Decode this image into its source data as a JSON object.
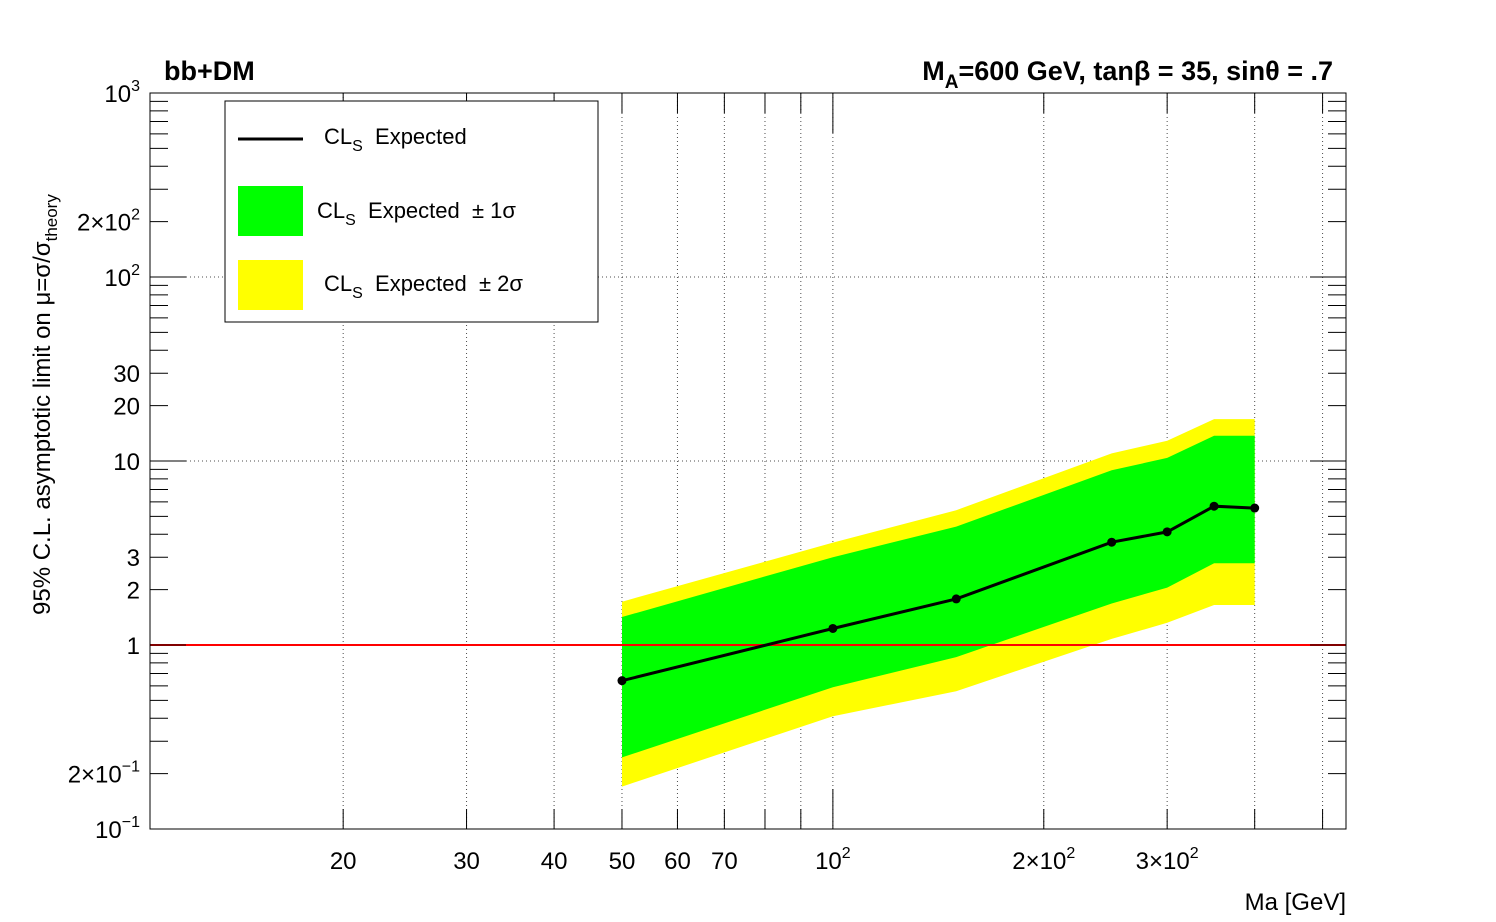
{
  "chart_data": {
    "type": "line",
    "title_left": "bb+DM",
    "title_right": {
      "part1": "M",
      "sub": "A",
      "part2": "=600 GeV, tanβ = 35, sinθ = .7"
    },
    "xlabel": "Ma [GeV]",
    "ylabel": {
      "main": "95% C.L. asymptotic limit on μ=σ/σ",
      "sub": "theory"
    },
    "x_scale": "log",
    "y_scale": "log",
    "xlim": [
      10.6,
      540
    ],
    "ylim": [
      0.1,
      1000
    ],
    "grid": true,
    "x_ticks": [
      {
        "value": 20,
        "label": "20"
      },
      {
        "value": 30,
        "label": "30"
      },
      {
        "value": 40,
        "label": "40"
      },
      {
        "value": 50,
        "label": "50"
      },
      {
        "value": 60,
        "label": "60"
      },
      {
        "value": 70,
        "label": "70"
      },
      {
        "value": 100,
        "base": "10",
        "exp": "2"
      },
      {
        "value": 200,
        "base": "2×10",
        "exp": "2"
      },
      {
        "value": 300,
        "base": "3×10",
        "exp": "2"
      }
    ],
    "y_ticks": [
      {
        "value": 0.1,
        "base": "10",
        "exp": "−1"
      },
      {
        "value": 0.2,
        "base": "2×10",
        "exp": "−1"
      },
      {
        "value": 1,
        "label": "1"
      },
      {
        "value": 2,
        "label": "2"
      },
      {
        "value": 3,
        "label": "3"
      },
      {
        "value": 10,
        "label": "10"
      },
      {
        "value": 20,
        "label": "20"
      },
      {
        "value": 30,
        "label": "30"
      },
      {
        "value": 100,
        "base": "10",
        "exp": "2"
      },
      {
        "value": 200,
        "base": "2×10",
        "exp": "2"
      },
      {
        "value": 1000,
        "base": "10",
        "exp": "3"
      }
    ],
    "mass_points": [
      50,
      100,
      150,
      250,
      300,
      350,
      400
    ],
    "expected": [
      0.64,
      1.23,
      1.78,
      3.62,
      4.12,
      5.68,
      5.55
    ],
    "band_1sigma": {
      "low": [
        0.245,
        0.59,
        0.86,
        1.68,
        2.05,
        2.78,
        2.78
      ],
      "high": [
        1.42,
        3.0,
        4.4,
        8.9,
        10.4,
        13.7,
        13.7
      ]
    },
    "band_2sigma": {
      "low": [
        0.17,
        0.41,
        0.56,
        1.08,
        1.32,
        1.65,
        1.65
      ],
      "high": [
        1.72,
        3.6,
        5.4,
        11.0,
        12.9,
        16.9,
        16.9
      ]
    },
    "reference_line": {
      "y": 1,
      "color": "#ff0000"
    },
    "colors": {
      "expected": "#000000",
      "band_1sigma": "#00ff00",
      "band_2sigma": "#ffff00"
    },
    "legend": {
      "position": "top-left",
      "entries": [
        {
          "main": "CL",
          "sub": "S",
          "rest": "  Expected"
        },
        {
          "main": "CL",
          "sub": "S",
          "rest": "  Expected  ± 1σ"
        },
        {
          "main": "CL",
          "sub": "S",
          "rest": "  Expected  ± 2σ"
        }
      ]
    }
  }
}
